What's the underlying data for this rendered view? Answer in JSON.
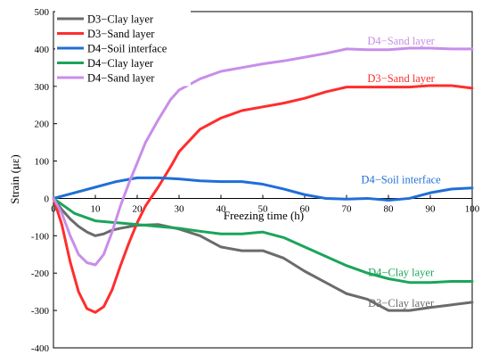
{
  "chart_data": {
    "type": "line",
    "xlabel": "Freezing time (h)",
    "ylabel": "Strain (με)",
    "xlim": [
      0,
      100
    ],
    "ylim": [
      -400,
      500
    ],
    "xticks": [
      "0",
      "10",
      "20",
      "30",
      "40",
      "50",
      "60",
      "70",
      "80",
      "90",
      "100"
    ],
    "yticks": [
      "-400",
      "-300",
      "-200",
      "-100",
      "0",
      "100",
      "200",
      "300",
      "400",
      "500"
    ],
    "legend_position": "top-left",
    "grid": false,
    "series": [
      {
        "name": "D3−Clay layer",
        "color": "#6b6b6b",
        "x": [
          0,
          2,
          4,
          6,
          8,
          10,
          12,
          14,
          16,
          18,
          20,
          25,
          30,
          35,
          40,
          45,
          50,
          55,
          60,
          65,
          70,
          75,
          80,
          85,
          90,
          95,
          100
        ],
        "y": [
          0,
          -30,
          -55,
          -75,
          -90,
          -100,
          -95,
          -85,
          -80,
          -76,
          -72,
          -70,
          -82,
          -100,
          -130,
          -140,
          -140,
          -160,
          -195,
          -225,
          -255,
          -270,
          -300,
          -300,
          -292,
          -285,
          -278
        ]
      },
      {
        "name": "D3−Sand layer",
        "color": "#ff2d2d",
        "x": [
          0,
          2,
          4,
          6,
          8,
          10,
          12,
          14,
          16,
          18,
          20,
          22,
          25,
          28,
          30,
          35,
          40,
          45,
          50,
          55,
          60,
          65,
          70,
          75,
          80,
          85,
          90,
          95,
          100
        ],
        "y": [
          0,
          -70,
          -170,
          -250,
          -295,
          -305,
          -290,
          -245,
          -180,
          -120,
          -65,
          -20,
          30,
          85,
          125,
          185,
          215,
          235,
          245,
          255,
          268,
          285,
          298,
          298,
          298,
          298,
          302,
          302,
          295
        ]
      },
      {
        "name": "D4−Soil interface",
        "color": "#1f6fd6",
        "x": [
          0,
          5,
          10,
          15,
          20,
          25,
          30,
          35,
          40,
          45,
          50,
          55,
          60,
          65,
          70,
          75,
          80,
          85,
          90,
          95,
          100
        ],
        "y": [
          0,
          15,
          30,
          45,
          55,
          55,
          52,
          47,
          45,
          45,
          38,
          25,
          10,
          0,
          -2,
          0,
          -5,
          0,
          15,
          25,
          28
        ]
      },
      {
        "name": "D4−Clay layer",
        "color": "#1aa55a",
        "x": [
          0,
          5,
          10,
          15,
          20,
          25,
          30,
          35,
          40,
          45,
          50,
          55,
          60,
          65,
          70,
          75,
          80,
          85,
          90,
          95,
          100
        ],
        "y": [
          0,
          -40,
          -60,
          -65,
          -70,
          -75,
          -80,
          -88,
          -95,
          -95,
          -90,
          -105,
          -130,
          -155,
          -180,
          -200,
          -215,
          -225,
          -225,
          -222,
          -222
        ]
      },
      {
        "name": "D4−Sand layer",
        "color": "#c88ee8",
        "x": [
          0,
          2,
          4,
          6,
          8,
          10,
          12,
          14,
          16,
          18,
          20,
          22,
          25,
          28,
          30,
          35,
          40,
          45,
          50,
          55,
          60,
          65,
          70,
          75,
          80,
          85,
          90,
          95,
          100
        ],
        "y": [
          0,
          -40,
          -100,
          -150,
          -172,
          -178,
          -150,
          -90,
          -20,
          40,
          95,
          150,
          210,
          265,
          290,
          320,
          340,
          350,
          360,
          368,
          378,
          388,
          400,
          398,
          398,
          402,
          402,
          400,
          400
        ]
      }
    ],
    "annotations": [
      {
        "text": "D4−Sand layer",
        "color": "#c88ee8",
        "x": 83,
        "y": 412
      },
      {
        "text": "D3−Sand layer",
        "color": "#ff2d2d",
        "x": 83,
        "y": 312
      },
      {
        "text": "D4−Soil interface",
        "color": "#1f6fd6",
        "x": 83,
        "y": 40
      },
      {
        "text": "D4−Clay layer",
        "color": "#1aa55a",
        "x": 83,
        "y": -208
      },
      {
        "text": "D3−Clay layer",
        "color": "#6b6b6b",
        "x": 83,
        "y": -290
      }
    ]
  }
}
